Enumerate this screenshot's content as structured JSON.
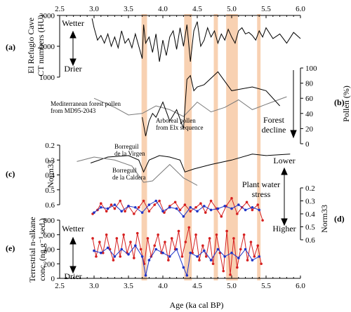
{
  "colors": {
    "band": "#f7c9a4",
    "black": "#000000",
    "gray": "#7a7a7a",
    "red": "#d62020",
    "blue": "#1f35c8"
  },
  "chart_data": {
    "type": "line",
    "x_axis": {
      "label": "Age (ka cal BP)",
      "range": [
        2.5,
        6.0
      ],
      "ticks": [
        "2.5",
        "3.0",
        "3.5",
        "4.0",
        "4.5",
        "5.0",
        "5.5",
        "6.0"
      ]
    },
    "highlight_bands_ka": [
      [
        3.69,
        3.77
      ],
      [
        4.31,
        4.42
      ],
      [
        4.74,
        4.8
      ],
      [
        4.92,
        5.09
      ],
      [
        5.37,
        5.42
      ]
    ],
    "panels": [
      {
        "id": "a",
        "label": "(a)",
        "ylabel_line1": "El Refugio Cave",
        "ylabel_line2": "CT numbers (HU)",
        "ylim": [
          1000,
          3000
        ],
        "ticks": [
          "1000",
          "2000",
          "3000"
        ],
        "wetter": "Wetter",
        "drier": "Drier",
        "series": [
          {
            "color": "black",
            "x": [
              2.97,
              3.0,
              3.05,
              3.1,
              3.15,
              3.2,
              3.25,
              3.3,
              3.35,
              3.4,
              3.45,
              3.5,
              3.55,
              3.6,
              3.65,
              3.7,
              3.72,
              3.75,
              3.8,
              3.85,
              3.9,
              3.95,
              4.0,
              4.05,
              4.1,
              4.15,
              4.2,
              4.25,
              4.3,
              4.35,
              4.4,
              4.45,
              4.5,
              4.55,
              4.6,
              4.65,
              4.7,
              4.75,
              4.8,
              4.85,
              4.9,
              4.95,
              5.0,
              5.05,
              5.1,
              5.15,
              5.2,
              5.25,
              5.3,
              5.35,
              5.4,
              5.45,
              5.5,
              5.6,
              5.7,
              5.8,
              5.9,
              6.0
            ],
            "y": [
              2900,
              2600,
              2200,
              2350,
              2100,
              2400,
              2000,
              2300,
              1950,
              2500,
              2100,
              2250,
              1950,
              2400,
              2000,
              1600,
              2700,
              2100,
              2300,
              1800,
              2400,
              1500,
              2200,
              1700,
              2300,
              2500,
              1900,
              2600,
              2000,
              2700,
              1500,
              2500,
              2800,
              2000,
              2200,
              2600,
              2300,
              2500,
              2100,
              2400,
              2200,
              2550,
              2300,
              2100,
              2500,
              2600,
              2400,
              2450,
              2350,
              2200,
              2500,
              2300,
              2600,
              2250,
              2400,
              2100,
              2450,
              2250
            ]
          }
        ]
      },
      {
        "id": "b",
        "label": "(b)",
        "ylabel": "Pollen (%)",
        "ylim": [
          0,
          100
        ],
        "ticks": [
          "0",
          "20",
          "40",
          "60",
          "80",
          "100"
        ],
        "note_mediterranean_1": "Mediterranean forest pollen",
        "note_mediterranean_2": "from MD95-2043",
        "note_arboreal_1": "Arboreal pollen",
        "note_arboreal_2": "from Elx sequence",
        "note_forest_1": "Forest",
        "note_forest_2": "decline",
        "series": [
          {
            "color": "gray",
            "x": [
              3.0,
              3.3,
              3.5,
              3.7,
              3.9,
              4.1,
              4.3,
              4.5,
              4.7,
              4.9,
              5.1,
              5.3,
              5.5,
              5.8
            ],
            "y": [
              60,
              48,
              38,
              40,
              50,
              45,
              36,
              55,
              42,
              48,
              58,
              45,
              52,
              62
            ]
          },
          {
            "color": "black",
            "x": [
              3.7,
              3.75,
              3.8,
              3.85,
              3.9,
              4.0,
              4.1,
              4.2,
              4.3,
              4.35,
              4.4,
              4.45,
              4.5,
              4.6,
              4.8,
              5.0,
              5.3,
              5.5,
              5.7
            ],
            "y": [
              35,
              10,
              30,
              40,
              35,
              55,
              30,
              45,
              20,
              85,
              90,
              70,
              75,
              78,
              95,
              70,
              75,
              70,
              50
            ]
          }
        ]
      },
      {
        "id": "c",
        "label": "(c)",
        "ylabel": "Norm33",
        "ylim": [
          0.2,
          0.6
        ],
        "ticks": [
          "0.2",
          "0.3",
          "0.4",
          "0.5",
          "0.6"
        ],
        "note_virgen_1": "Borreguil",
        "note_virgen_2": "de la Virgen",
        "note_caldera_1": "Borreguil",
        "note_caldera_2": "de la Caldera",
        "lower": "Lower",
        "stress_1": "Plant water",
        "stress_2": "stress",
        "higher": "Higher",
        "series": [
          {
            "color": "black",
            "x": [
              2.95,
              3.2,
              3.5,
              3.65,
              3.72,
              3.8,
              3.95,
              4.1,
              4.25,
              4.32,
              4.45,
              4.7,
              5.0,
              5.3,
              5.5,
              5.85
            ],
            "y": [
              0.32,
              0.28,
              0.27,
              0.3,
              0.38,
              0.3,
              0.27,
              0.28,
              0.3,
              0.38,
              0.36,
              0.33,
              0.3,
              0.26,
              0.27,
              0.26
            ]
          },
          {
            "color": "gray",
            "x": [
              2.75,
              3.0,
              3.3,
              3.55,
              3.72,
              3.85,
              4.1,
              4.3,
              4.42,
              4.5
            ],
            "y": [
              0.31,
              0.28,
              0.3,
              0.34,
              0.45,
              0.44,
              0.33,
              0.42,
              0.45,
              0.47
            ]
          }
        ]
      },
      {
        "id": "d",
        "label": "(d)",
        "ylabel": "Norm33",
        "ylim": [
          0.2,
          0.6
        ],
        "ticks": [
          "0.2",
          "0.3",
          "0.4",
          "0.5",
          "0.6"
        ],
        "series": [
          {
            "color": "red",
            "x": [
              2.98,
              3.05,
              3.1,
              3.18,
              3.25,
              3.3,
              3.38,
              3.45,
              3.5,
              3.58,
              3.65,
              3.72,
              3.8,
              3.88,
              3.95,
              4.02,
              4.1,
              4.18,
              4.25,
              4.32,
              4.4,
              4.48,
              4.55,
              4.62,
              4.7,
              4.78,
              4.85,
              4.92,
              5.0,
              5.08,
              5.15,
              5.22,
              5.3,
              5.38,
              5.45
            ],
            "y": [
              0.4,
              0.37,
              0.32,
              0.38,
              0.33,
              0.36,
              0.3,
              0.38,
              0.34,
              0.4,
              0.35,
              0.3,
              0.38,
              0.33,
              0.3,
              0.39,
              0.34,
              0.31,
              0.37,
              0.33,
              0.38,
              0.35,
              0.32,
              0.39,
              0.3,
              0.36,
              0.42,
              0.34,
              0.28,
              0.4,
              0.35,
              0.31,
              0.37,
              0.33,
              0.45
            ]
          },
          {
            "color": "blue",
            "x": [
              3.0,
              3.1,
              3.2,
              3.3,
              3.4,
              3.5,
              3.6,
              3.7,
              3.8,
              3.9,
              4.0,
              4.1,
              4.2,
              4.3,
              4.4,
              4.5,
              4.6,
              4.7,
              4.8,
              4.9,
              5.0,
              5.1,
              5.2,
              5.3,
              5.4
            ],
            "y": [
              0.39,
              0.35,
              0.36,
              0.33,
              0.38,
              0.34,
              0.35,
              0.39,
              0.33,
              0.3,
              0.38,
              0.35,
              0.36,
              0.42,
              0.35,
              0.38,
              0.34,
              0.37,
              0.36,
              0.34,
              0.36,
              0.33,
              0.37,
              0.35,
              0.37
            ]
          }
        ]
      },
      {
        "id": "e",
        "label": "(e)",
        "ylabel_line1": "Terrestrial n-alkane",
        "ylabel_line2": "conc. (ng g⁻¹ sed.)",
        "ylim": [
          0,
          800
        ],
        "ticks": [
          "0",
          "200",
          "400",
          "600",
          "800"
        ],
        "wetter": "Wetter",
        "drier": "Drier",
        "series": [
          {
            "color": "red",
            "x": [
              2.98,
              3.03,
              3.08,
              3.13,
              3.18,
              3.23,
              3.28,
              3.33,
              3.38,
              3.43,
              3.48,
              3.53,
              3.58,
              3.63,
              3.68,
              3.73,
              3.78,
              3.83,
              3.88,
              3.93,
              3.98,
              4.03,
              4.08,
              4.13,
              4.18,
              4.23,
              4.28,
              4.33,
              4.38,
              4.43,
              4.48,
              4.53,
              4.58,
              4.63,
              4.68,
              4.73,
              4.78,
              4.83,
              4.88,
              4.93,
              4.98,
              5.03,
              5.08,
              5.13,
              5.18,
              5.23,
              5.28,
              5.33,
              5.38,
              5.43
            ],
            "y": [
              550,
              300,
              500,
              350,
              600,
              400,
              250,
              550,
              300,
              600,
              350,
              500,
              280,
              620,
              400,
              200,
              550,
              300,
              450,
              600,
              350,
              500,
              250,
              550,
              400,
              650,
              300,
              500,
              700,
              350,
              600,
              250,
              450,
              300,
              550,
              200,
              600,
              350,
              100,
              650,
              50,
              550,
              150,
              400,
              600,
              250,
              500,
              300,
              450,
              200
            ]
          },
          {
            "color": "blue",
            "x": [
              3.0,
              3.1,
              3.2,
              3.3,
              3.4,
              3.5,
              3.6,
              3.7,
              3.75,
              3.8,
              3.9,
              4.0,
              4.1,
              4.2,
              4.3,
              4.35,
              4.4,
              4.5,
              4.6,
              4.7,
              4.8,
              4.9,
              5.0,
              5.1,
              5.2,
              5.3,
              5.4
            ],
            "y": [
              380,
              350,
              420,
              300,
              400,
              330,
              450,
              300,
              40,
              250,
              400,
              350,
              300,
              400,
              150,
              40,
              350,
              300,
              380,
              250,
              400,
              300,
              350,
              280,
              400,
              250,
              300
            ]
          }
        ]
      }
    ]
  }
}
